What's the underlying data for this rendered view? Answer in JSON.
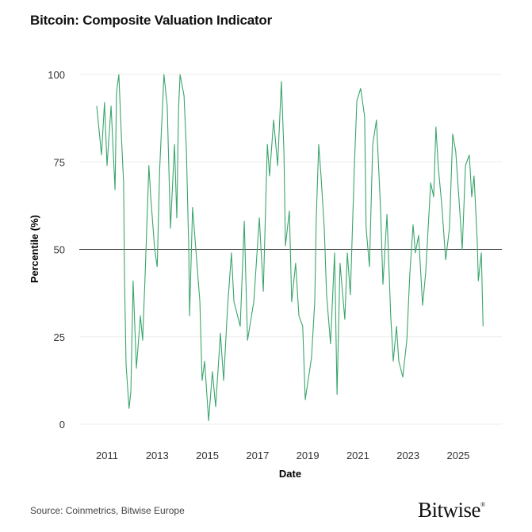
{
  "title": "Bitcoin: Composite Valuation Indicator",
  "source": "Source: Coinmetrics, Bitwise Europe",
  "logo_text": "Bitwise",
  "colors": {
    "line": "#3aa56b",
    "reference_line": "#333333",
    "grid": "#eeeeee"
  },
  "chart_data": {
    "type": "line",
    "title": "Bitcoin: Composite Valuation Indicator",
    "xlabel": "Date",
    "ylabel": "Percentile (%)",
    "xlim": [
      2010.1,
      2026.9
    ],
    "ylim": [
      0,
      100
    ],
    "x_ticks": [
      2011,
      2013,
      2015,
      2017,
      2019,
      2021,
      2023,
      2025
    ],
    "x_tick_labels": [
      "2011",
      "2013",
      "2015",
      "2017",
      "2019",
      "2021",
      "2023",
      "2025"
    ],
    "y_ticks": [
      0,
      25,
      50,
      75,
      100
    ],
    "y_tick_labels": [
      "0",
      "25",
      "50",
      "75",
      "100"
    ],
    "grid": "horizontal",
    "reference_line": 50,
    "series": [
      {
        "x": [
          2010.59,
          2010.78,
          2010.9,
          2011.0,
          2011.16,
          2011.32,
          2011.38,
          2011.47,
          2011.57,
          2011.66,
          2011.7,
          2011.76,
          2011.88,
          2011.95,
          2012.04,
          2012.17,
          2012.33,
          2012.42,
          2012.52,
          2012.67,
          2012.74,
          2012.9,
          2013.0,
          2013.1,
          2013.27,
          2013.4,
          2013.53,
          2013.69,
          2013.78,
          2013.85,
          2013.91,
          2014.07,
          2014.16,
          2014.26,
          2014.29,
          2014.41,
          2014.54,
          2014.7,
          2014.79,
          2014.89,
          2015.05,
          2015.2,
          2015.33,
          2015.52,
          2015.65,
          2015.8,
          2015.96,
          2016.06,
          2016.31,
          2016.47,
          2016.6,
          2016.85,
          2017.07,
          2017.23,
          2017.39,
          2017.48,
          2017.64,
          2017.8,
          2017.95,
          2018.05,
          2018.11,
          2018.27,
          2018.36,
          2018.52,
          2018.65,
          2018.8,
          2018.9,
          2019.15,
          2019.28,
          2019.34,
          2019.44,
          2019.53,
          2019.66,
          2019.75,
          2019.91,
          2020.07,
          2020.17,
          2020.29,
          2020.48,
          2020.58,
          2020.7,
          2020.86,
          2020.96,
          2021.11,
          2021.27,
          2021.33,
          2021.46,
          2021.59,
          2021.74,
          2021.9,
          2022.0,
          2022.16,
          2022.31,
          2022.41,
          2022.54,
          2022.63,
          2022.79,
          2022.95,
          2023.07,
          2023.2,
          2023.29,
          2023.42,
          2023.58,
          2023.7,
          2023.8,
          2023.9,
          2024.02,
          2024.11,
          2024.21,
          2024.34,
          2024.5,
          2024.65,
          2024.78,
          2024.9,
          2025.06,
          2025.16,
          2025.29,
          2025.44,
          2025.54,
          2025.63,
          2025.76,
          2025.8,
          2025.92,
          2025.99
        ],
        "y": [
          91,
          77,
          92,
          74,
          91,
          67,
          95,
          100,
          83,
          69,
          41,
          17,
          4.5,
          9.5,
          41,
          16,
          31,
          24,
          43,
          74,
          65,
          50,
          45,
          73,
          100,
          91,
          56,
          80,
          59,
          90,
          100,
          94,
          79,
          50,
          31,
          62,
          50,
          35,
          12.5,
          18,
          1,
          15,
          5,
          26,
          12.5,
          33,
          49,
          35,
          28,
          58,
          24,
          35,
          59,
          38,
          80,
          71,
          87,
          74,
          98,
          78,
          51,
          61,
          35,
          46,
          31,
          28,
          7,
          19,
          35,
          59,
          80,
          71,
          56,
          37,
          23,
          49,
          8.5,
          46,
          30,
          49,
          37,
          74,
          92.5,
          96,
          88,
          56,
          45,
          80,
          87,
          62,
          40,
          60,
          31,
          18,
          28,
          18,
          13.5,
          24,
          43,
          57,
          49,
          54,
          34,
          43,
          56,
          69,
          65,
          85,
          73,
          63,
          47,
          56,
          83,
          78,
          61,
          50,
          74,
          77,
          65,
          71,
          52,
          41,
          49,
          28
        ]
      }
    ]
  }
}
